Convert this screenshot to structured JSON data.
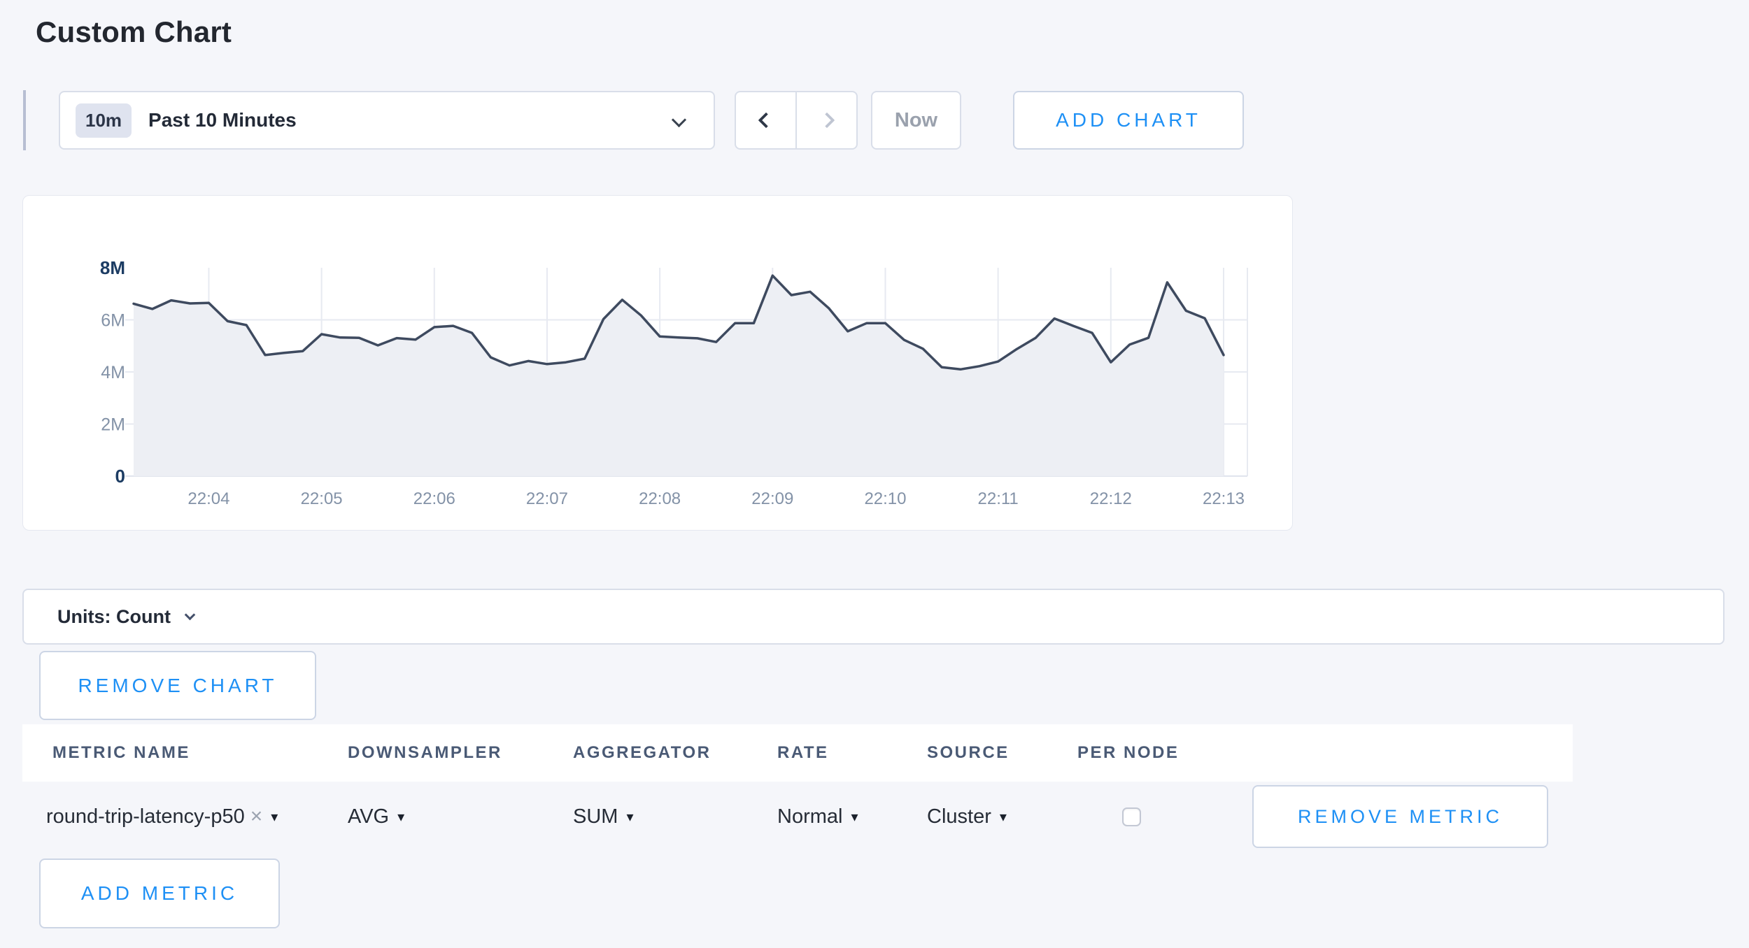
{
  "page": {
    "title": "Custom Chart",
    "background": "#f5f6fa",
    "accent_blue": "#1e90f5"
  },
  "toolbar": {
    "range_badge": "10m",
    "range_label": "Past 10 Minutes",
    "now_label": "Now",
    "add_chart_label": "ADD CHART"
  },
  "chart_data": {
    "type": "area",
    "title": "",
    "xlabel": "",
    "ylabel": "Count",
    "ylim": [
      0,
      8000000
    ],
    "yticks": [
      0,
      2000000,
      4000000,
      6000000,
      8000000
    ],
    "ytick_labels": [
      "0",
      "2M",
      "4M",
      "6M",
      "8M"
    ],
    "xtick_labels": [
      "22:04",
      "22:05",
      "22:06",
      "22:07",
      "22:08",
      "22:09",
      "22:10",
      "22:11",
      "22:12",
      "22:13"
    ],
    "xtick_indices": [
      4,
      10,
      16,
      22,
      28,
      34,
      40,
      46,
      52,
      58
    ],
    "x_start": "22:03:20",
    "x_step_seconds": 10,
    "series": [
      {
        "name": "round-trip-latency-p50",
        "values": [
          6620000,
          6420000,
          6750000,
          6630000,
          6650000,
          5950000,
          5800000,
          4650000,
          4730000,
          4800000,
          5450000,
          5320000,
          5310000,
          5020000,
          5300000,
          5240000,
          5720000,
          5770000,
          5500000,
          4560000,
          4250000,
          4420000,
          4300000,
          4370000,
          4510000,
          6030000,
          6770000,
          6170000,
          5360000,
          5320000,
          5290000,
          5150000,
          5870000,
          5870000,
          7700000,
          6950000,
          7080000,
          6440000,
          5560000,
          5870000,
          5870000,
          5230000,
          4890000,
          4180000,
          4100000,
          4220000,
          4400000,
          4880000,
          5310000,
          6050000,
          5770000,
          5500000,
          4370000,
          5050000,
          5310000,
          7440000,
          6350000,
          6060000,
          4650000
        ]
      }
    ],
    "grid": true,
    "legend": "none",
    "line_color": "#3e4a5f",
    "fill_color": "#edeff4",
    "grid_color": "#e7eaf1",
    "axis_line_color": "#e0e4ed",
    "label_color": "#8392a7",
    "label_bold_color": "#1c3c63"
  },
  "units_bar": {
    "label": "Units: Count"
  },
  "chart_actions": {
    "remove_chart_label": "REMOVE CHART"
  },
  "metrics_table": {
    "headers": [
      "METRIC NAME",
      "DOWNSAMPLER",
      "AGGREGATOR",
      "RATE",
      "SOURCE",
      "PER NODE"
    ],
    "caret_icon": "▾",
    "rows": [
      {
        "metric_name": "round-trip-latency-p50",
        "remove_tag_icon": "×",
        "downsampler": "AVG",
        "aggregator": "SUM",
        "rate": "Normal",
        "source": "Cluster",
        "per_node_checked": false,
        "remove_label": "REMOVE METRIC"
      }
    ],
    "add_metric_label": "ADD METRIC"
  }
}
